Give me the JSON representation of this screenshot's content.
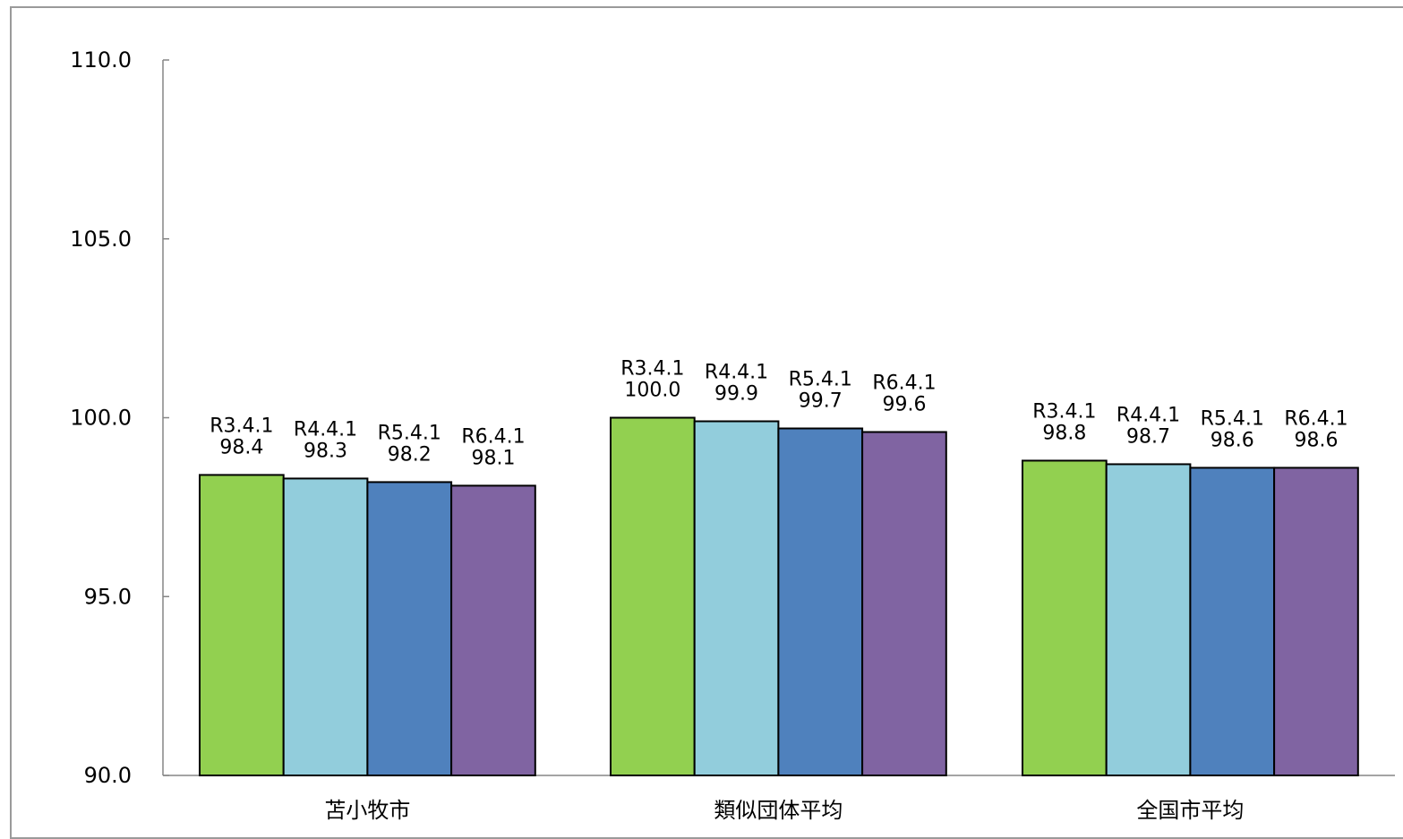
{
  "chart_data": {
    "type": "bar",
    "categories": [
      "苫小牧市",
      "類似団体平均",
      "全国市平均"
    ],
    "series": [
      {
        "name": "R3.4.1",
        "values": [
          98.4,
          100.0,
          98.8
        ],
        "color": "#92d050"
      },
      {
        "name": "R4.4.1",
        "values": [
          98.3,
          99.9,
          98.7
        ],
        "color": "#92cddc"
      },
      {
        "name": "R5.4.1",
        "values": [
          98.2,
          99.7,
          98.6
        ],
        "color": "#4f81bd"
      },
      {
        "name": "R6.4.1",
        "values": [
          98.1,
          99.6,
          98.6
        ],
        "color": "#8064a2"
      }
    ],
    "value_labels": [
      [
        "98.4",
        "100.0",
        "98.8"
      ],
      [
        "98.3",
        "99.9",
        "98.7"
      ],
      [
        "98.2",
        "99.7",
        "98.6"
      ],
      [
        "98.1",
        "99.6",
        "98.6"
      ]
    ],
    "yticks": [
      "90.0",
      "95.0",
      "100.0",
      "105.0",
      "110.0"
    ],
    "ylim": [
      90,
      110
    ],
    "grid": false,
    "legend": "none (series names shown above bars)"
  }
}
